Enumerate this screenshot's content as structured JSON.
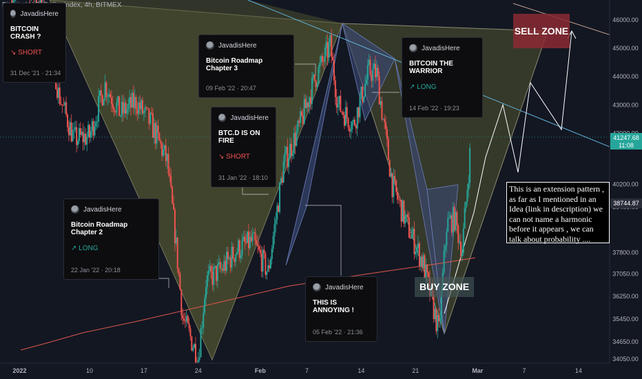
{
  "header": {
    "symbol_line": "Bitcoin / U.S. Dollar Index, 4h, BITMEX"
  },
  "colors": {
    "background": "#131722",
    "candle_up": "#26a69a",
    "candle_down": "#ef5350",
    "pattern_fill": "#4b4f2f",
    "harmonic_fill": "#3a4a7a",
    "trendline": "#e0574a",
    "channel": "#5fb3d9",
    "price_badge": "#26a69a",
    "sell_zone": "#8b2a33"
  },
  "y_axis": {
    "ticks": [
      "46000.00",
      "45000.00",
      "44000.00",
      "43000.00",
      "42000.00",
      "40200.00",
      "39400.00",
      "37800.00",
      "37050.00",
      "36250.00",
      "35450.00",
      "34650.00",
      "34050.00"
    ],
    "current_price": "41247.68",
    "countdown": "11:08",
    "marker_price": "38744.87"
  },
  "x_axis": {
    "ticks": [
      "2022",
      "10",
      "17",
      "24",
      "Feb",
      "7",
      "14",
      "21",
      "Mar",
      "7",
      "14"
    ]
  },
  "ideas": [
    {
      "author": "JavadisHere",
      "title": "BITCOIN CRASH ?",
      "direction": "↘ SHORT",
      "date": "31 Dec '21 · 21:34"
    },
    {
      "author": "JavadisHere",
      "title": "Bitcoin Roadmap Chapter 3",
      "direction": "",
      "date": "09 Feb '22 · 20:47"
    },
    {
      "author": "JavadisHere",
      "title": "BTC.D IS ON FIRE",
      "direction": "↘ SHORT",
      "date": "31 Jan '22 · 18:10"
    },
    {
      "author": "JavadisHere",
      "title": "Bitcoin Roadmap Chapter 2",
      "direction": "↗ LONG",
      "date": "22 Jan '22 · 20:18"
    },
    {
      "author": "JavadisHere",
      "title": "THIS IS ANNOYING !",
      "direction": "",
      "date": "05 Feb '22 · 21:36"
    },
    {
      "author": "JavadisHere",
      "title": "BITCOIN THE WARRIOR",
      "direction": "↗ LONG",
      "date": "14 Feb '22 · 19:23"
    }
  ],
  "zones": {
    "sell": "SELL ZONE",
    "buy": "BUY ZONE"
  },
  "note": "This is an extension pattern , as far as I mentioned in an Idea (link in description) we can not name a harmonic before it appears , we can talk about probability ....",
  "chart_data": {
    "type": "candlestick",
    "title": "Bitcoin / U.S. Dollar Index, 4h, BITMEX",
    "timeframe": "4h",
    "x_range": [
      "2021-12-30",
      "2022-03-18"
    ],
    "y_range": [
      33900,
      46700
    ],
    "grid": false,
    "close_series": [
      [
        "2021-12-31",
        46900
      ],
      [
        "2022-01-02",
        47300
      ],
      [
        "2022-01-04",
        46200
      ],
      [
        "2022-01-05",
        45200
      ],
      [
        "2022-01-06",
        43400
      ],
      [
        "2022-01-08",
        41800
      ],
      [
        "2022-01-10",
        41900
      ],
      [
        "2022-01-12",
        43700
      ],
      [
        "2022-01-14",
        42700
      ],
      [
        "2022-01-16",
        43100
      ],
      [
        "2022-01-18",
        42300
      ],
      [
        "2022-01-20",
        41000
      ],
      [
        "2022-01-21",
        38500
      ],
      [
        "2022-01-22",
        35500
      ],
      [
        "2022-01-24",
        34100
      ],
      [
        "2022-01-25",
        36800
      ],
      [
        "2022-01-27",
        37200
      ],
      [
        "2022-01-29",
        37900
      ],
      [
        "2022-01-31",
        38200
      ],
      [
        "2022-02-02",
        37100
      ],
      [
        "2022-02-04",
        40900
      ],
      [
        "2022-02-06",
        42200
      ],
      [
        "2022-02-08",
        43900
      ],
      [
        "2022-02-10",
        45100
      ],
      [
        "2022-02-11",
        43000
      ],
      [
        "2022-02-13",
        42300
      ],
      [
        "2022-02-15",
        44200
      ],
      [
        "2022-02-16",
        44100
      ],
      [
        "2022-02-18",
        40200
      ],
      [
        "2022-02-20",
        38700
      ],
      [
        "2022-02-22",
        37400
      ],
      [
        "2022-02-24",
        35000
      ],
      [
        "2022-02-25",
        38800
      ],
      [
        "2022-02-26",
        39000
      ],
      [
        "2022-02-27",
        37900
      ],
      [
        "2022-02-28",
        41247.68
      ]
    ],
    "current_price": 41247.68,
    "annotations": [
      "SELL ZONE",
      "BUY ZONE"
    ]
  }
}
